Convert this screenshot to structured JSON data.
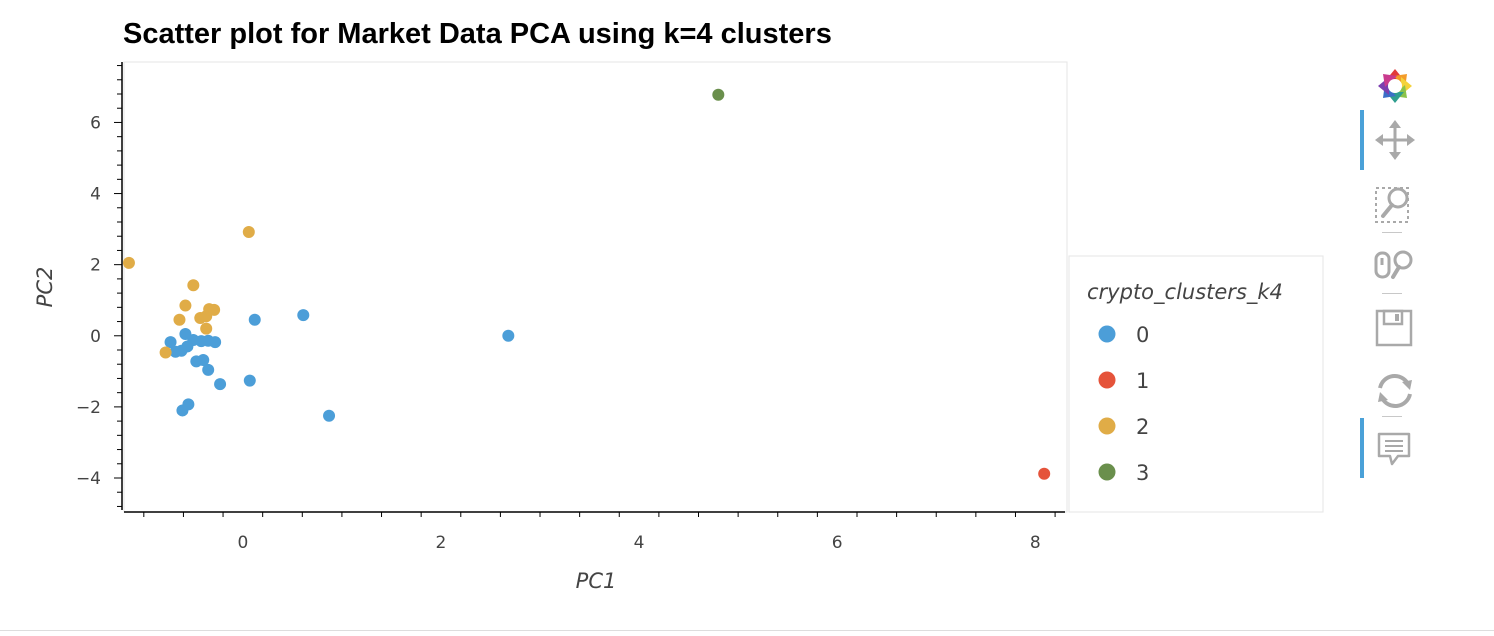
{
  "chart_data": {
    "type": "scatter",
    "title": "Scatter plot for Market Data PCA using k=4 clusters",
    "xlabel": "PC1",
    "ylabel": "PC2",
    "xlim": [
      -1.2,
      8.3
    ],
    "ylim": [
      -4.9,
      7.7
    ],
    "x_ticks": [
      0,
      2,
      4,
      6,
      8
    ],
    "y_ticks": [
      -4,
      -2,
      0,
      2,
      4,
      6
    ],
    "grid": false,
    "legend": {
      "title": "crypto_clusters_k4",
      "position": "right"
    },
    "series": [
      {
        "name": "0",
        "color": "#4c9ed8",
        "points": [
          [
            0.12,
            0.45
          ],
          [
            0.61,
            0.58
          ],
          [
            2.68,
            0.0
          ],
          [
            -0.58,
            0.05
          ],
          [
            -0.73,
            -0.18
          ],
          [
            -0.5,
            -0.12
          ],
          [
            -0.42,
            -0.15
          ],
          [
            -0.35,
            -0.14
          ],
          [
            -0.28,
            -0.18
          ],
          [
            -0.56,
            -0.3
          ],
          [
            -0.62,
            -0.42
          ],
          [
            -0.68,
            -0.45
          ],
          [
            -0.47,
            -0.72
          ],
          [
            -0.4,
            -0.68
          ],
          [
            -0.35,
            -0.96
          ],
          [
            -0.23,
            -1.36
          ],
          [
            0.07,
            -1.26
          ],
          [
            -0.61,
            -2.1
          ],
          [
            -0.55,
            -1.93
          ],
          [
            0.87,
            -2.25
          ]
        ]
      },
      {
        "name": "1",
        "color": "#e5533a",
        "points": [
          [
            8.09,
            -3.88
          ]
        ]
      },
      {
        "name": "2",
        "color": "#e0ac47",
        "points": [
          [
            0.06,
            2.92
          ],
          [
            -1.15,
            2.05
          ],
          [
            -0.5,
            1.42
          ],
          [
            -0.58,
            0.85
          ],
          [
            -0.64,
            0.45
          ],
          [
            -0.43,
            0.5
          ],
          [
            -0.37,
            0.55
          ],
          [
            -0.34,
            0.75
          ],
          [
            -0.29,
            0.73
          ],
          [
            -0.37,
            0.2
          ],
          [
            -0.78,
            -0.47
          ]
        ]
      },
      {
        "name": "3",
        "color": "#6a8f4c",
        "points": [
          [
            4.8,
            6.78
          ]
        ]
      }
    ]
  },
  "toolbar": {
    "items": [
      "bokeh-logo-icon",
      "pan-icon",
      "box-zoom-icon",
      "wheel-zoom-icon",
      "save-icon",
      "reset-icon",
      "hover-icon"
    ]
  }
}
